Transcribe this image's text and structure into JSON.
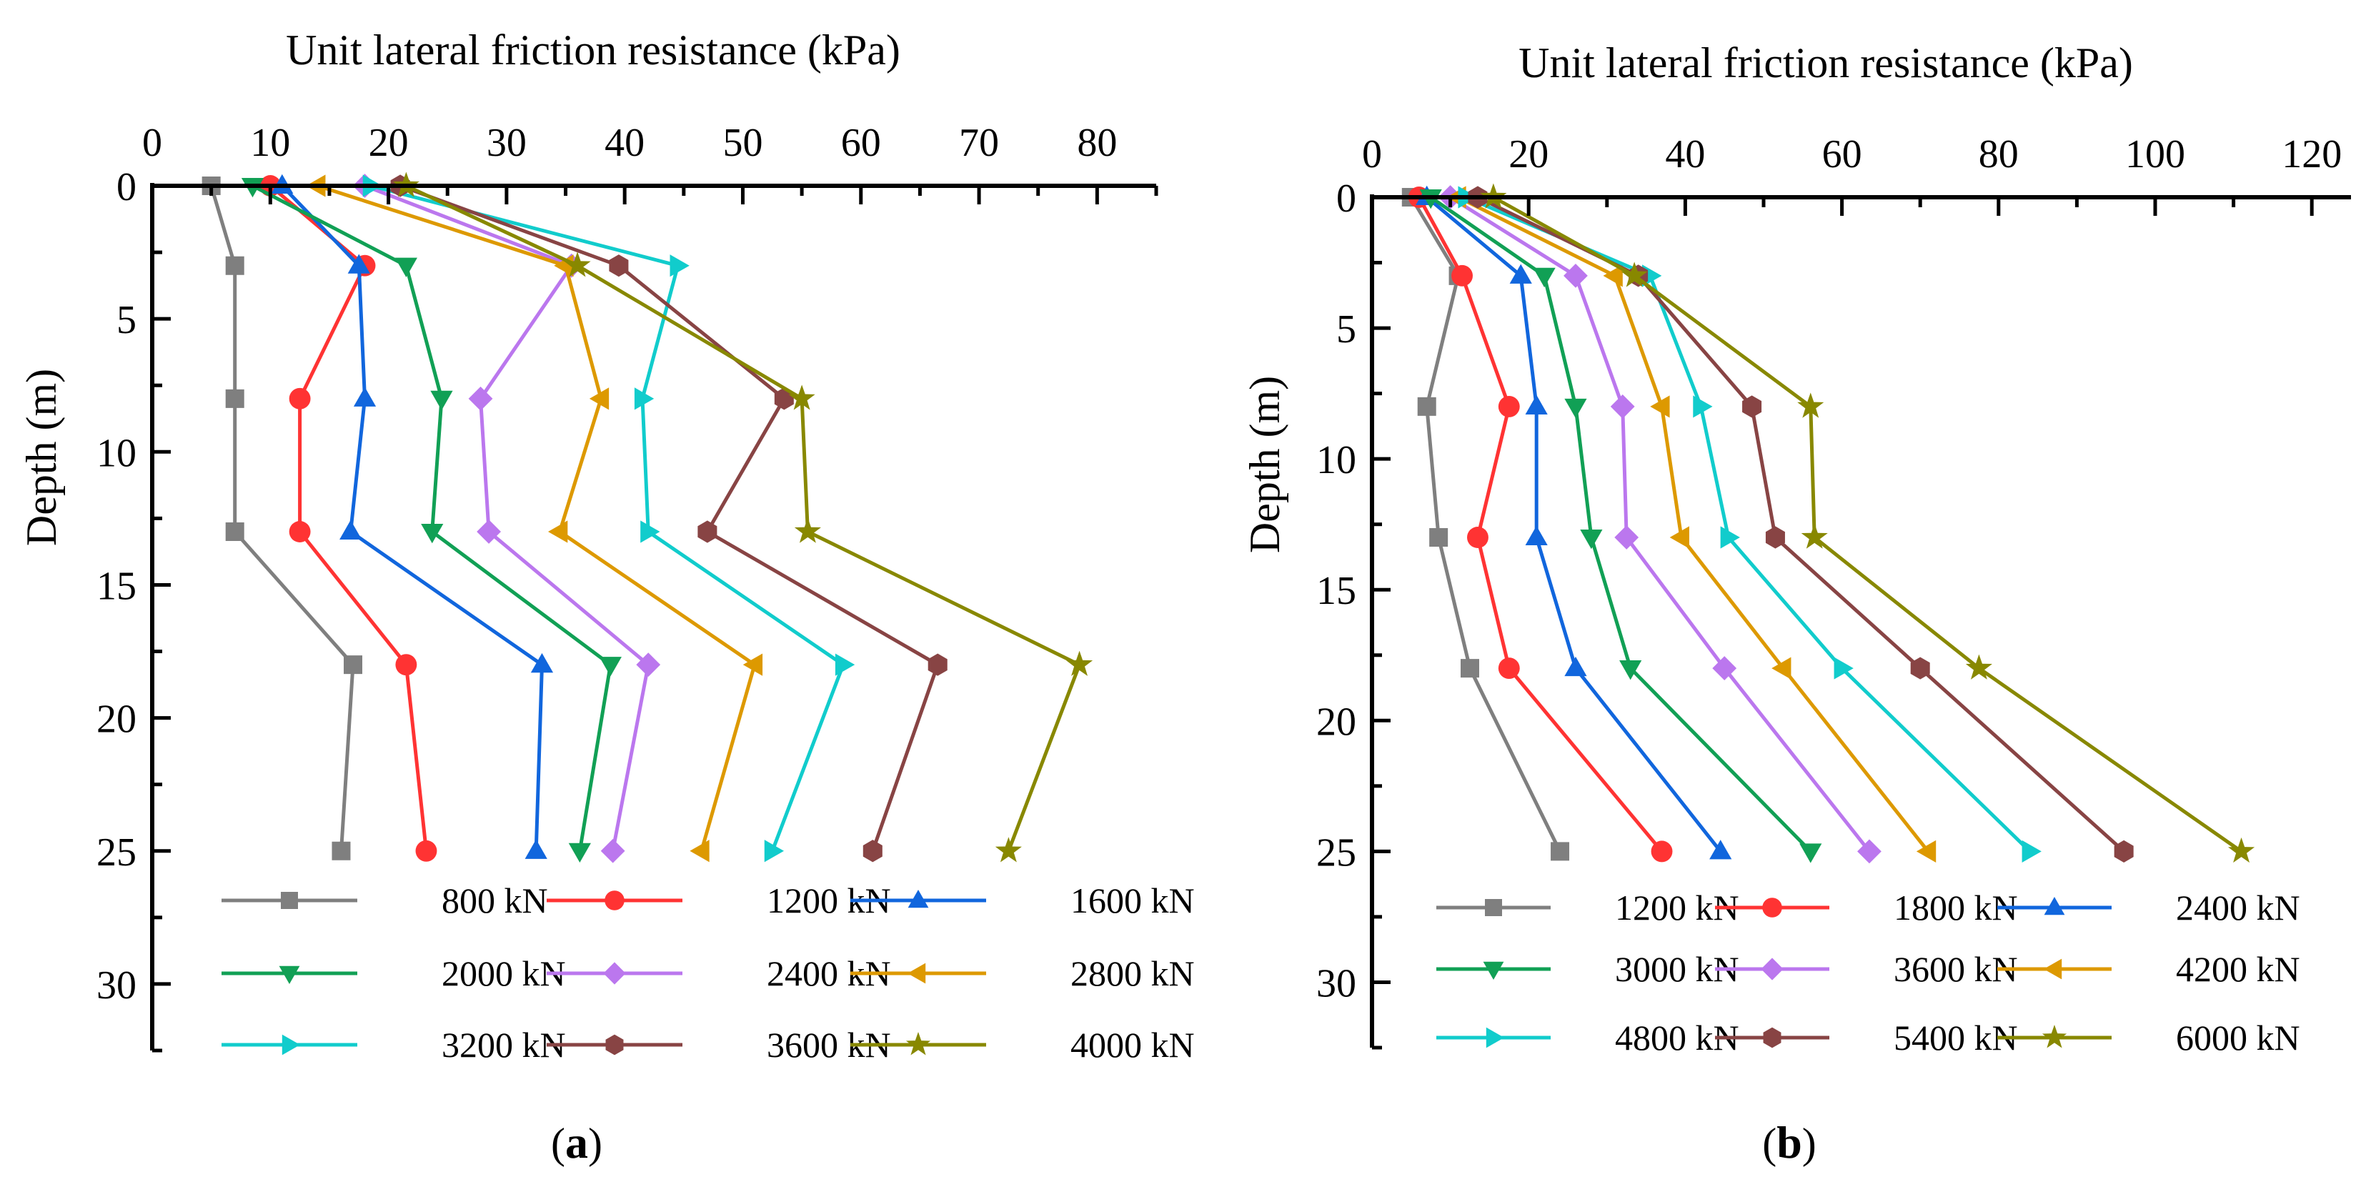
{
  "chart_data": [
    {
      "type": "line",
      "panel": "a",
      "xlabel": "Unit lateral friction resistance (kPa)",
      "ylabel": "Depth (m)",
      "xlim": [
        0,
        85
      ],
      "ylim": [
        0,
        32.5
      ],
      "y_inverted": true,
      "x_axis_position": "top",
      "xticks": [
        0,
        10,
        20,
        30,
        40,
        50,
        60,
        70,
        80
      ],
      "yticks": [
        0,
        5,
        10,
        15,
        20,
        25,
        30
      ],
      "legend_position": "bottom",
      "legend_columns": 3,
      "series": [
        {
          "name": "800 kN",
          "color": "#7f7f7f",
          "marker": "square",
          "x": [
            5,
            7,
            7,
            7,
            17,
            16
          ],
          "y": [
            0,
            3,
            8,
            13,
            18,
            25
          ]
        },
        {
          "name": "1200 kN",
          "color": "#ff3333",
          "marker": "circle",
          "x": [
            10,
            18,
            12.5,
            12.5,
            21.5,
            23.2
          ],
          "y": [
            0,
            3,
            8,
            13,
            18,
            25
          ]
        },
        {
          "name": "1600 kN",
          "color": "#1166dd",
          "marker": "triangle-up",
          "x": [
            11,
            17.5,
            18,
            16.8,
            33,
            32.5
          ],
          "y": [
            0,
            3,
            8,
            13,
            18,
            25
          ]
        },
        {
          "name": "2000 kN",
          "color": "#11a055",
          "marker": "triangle-down",
          "x": [
            8.5,
            21.5,
            24.5,
            23.7,
            38.8,
            36.2
          ],
          "y": [
            0,
            3,
            8,
            13,
            18,
            25
          ]
        },
        {
          "name": "2400 kN",
          "color": "#bb77ee",
          "marker": "diamond",
          "x": [
            18,
            35.5,
            27.8,
            28.5,
            42,
            39
          ],
          "y": [
            0,
            3,
            8,
            13,
            18,
            25
          ]
        },
        {
          "name": "2800 kN",
          "color": "#dd9900",
          "marker": "triangle-left",
          "x": [
            14,
            35,
            38,
            34.5,
            51,
            46.5
          ],
          "y": [
            0,
            3,
            8,
            13,
            18,
            25
          ]
        },
        {
          "name": "3200 kN",
          "color": "#11cccc",
          "marker": "triangle-right",
          "x": [
            18.5,
            44.5,
            41.5,
            42,
            58.5,
            52.5
          ],
          "y": [
            0,
            3,
            8,
            13,
            18,
            25
          ]
        },
        {
          "name": "3600 kN",
          "color": "#884444",
          "marker": "hexagon",
          "x": [
            21,
            39.5,
            53.5,
            47,
            66.5,
            61
          ],
          "y": [
            0,
            3,
            8,
            13,
            18,
            25
          ]
        },
        {
          "name": "4000 kN",
          "color": "#888800",
          "marker": "star",
          "x": [
            21.5,
            36,
            55,
            55.5,
            78.5,
            72.5
          ],
          "y": [
            0,
            3,
            8,
            13,
            18,
            25
          ]
        }
      ]
    },
    {
      "type": "line",
      "panel": "b",
      "xlabel": "Unit lateral friction resistance (kPa)",
      "ylabel": "Depth (m)",
      "xlim": [
        0,
        125
      ],
      "ylim": [
        0,
        32.5
      ],
      "y_inverted": true,
      "x_axis_position": "top",
      "xticks": [
        0,
        20,
        40,
        60,
        80,
        100,
        120
      ],
      "yticks": [
        0,
        5,
        10,
        15,
        20,
        25,
        30
      ],
      "legend_position": "bottom",
      "legend_columns": 3,
      "series": [
        {
          "name": "1200 kN",
          "color": "#7f7f7f",
          "marker": "square",
          "x": [
            5,
            11,
            7,
            8.5,
            12.5,
            24
          ],
          "y": [
            0,
            3,
            8,
            13,
            18,
            25
          ]
        },
        {
          "name": "1800 kN",
          "color": "#ff3333",
          "marker": "circle",
          "x": [
            6,
            11.5,
            17.5,
            13.5,
            17.5,
            37
          ],
          "y": [
            0,
            3,
            8,
            13,
            18,
            25
          ]
        },
        {
          "name": "2400 kN",
          "color": "#1166dd",
          "marker": "triangle-up",
          "x": [
            7,
            19,
            21,
            21,
            26,
            44.5
          ],
          "y": [
            0,
            3,
            8,
            13,
            18,
            25
          ]
        },
        {
          "name": "3000 kN",
          "color": "#11a055",
          "marker": "triangle-down",
          "x": [
            7.5,
            22,
            26,
            28,
            33,
            56
          ],
          "y": [
            0,
            3,
            8,
            13,
            18,
            25
          ]
        },
        {
          "name": "3600 kN",
          "color": "#bb77ee",
          "marker": "diamond",
          "x": [
            10,
            26,
            32,
            32.5,
            45,
            63.5
          ],
          "y": [
            0,
            3,
            8,
            13,
            18,
            25
          ]
        },
        {
          "name": "4200 kN",
          "color": "#dd9900",
          "marker": "triangle-left",
          "x": [
            11,
            31,
            37,
            39.5,
            52.5,
            71
          ],
          "y": [
            0,
            3,
            8,
            13,
            18,
            25
          ]
        },
        {
          "name": "4800 kN",
          "color": "#11cccc",
          "marker": "triangle-right",
          "x": [
            12,
            35.5,
            42,
            45.5,
            60,
            84
          ],
          "y": [
            0,
            3,
            8,
            13,
            18,
            25
          ]
        },
        {
          "name": "5400 kN",
          "color": "#884444",
          "marker": "hexagon",
          "x": [
            13.5,
            34,
            48.5,
            51.5,
            70,
            96
          ],
          "y": [
            0,
            3,
            8,
            13,
            18,
            25
          ]
        },
        {
          "name": "6000 kN",
          "color": "#888800",
          "marker": "star",
          "x": [
            15.5,
            33.5,
            56,
            56.5,
            77.5,
            111
          ],
          "y": [
            0,
            3,
            8,
            13,
            18,
            25
          ]
        }
      ]
    }
  ],
  "panel_labels": [
    "a",
    "b"
  ]
}
